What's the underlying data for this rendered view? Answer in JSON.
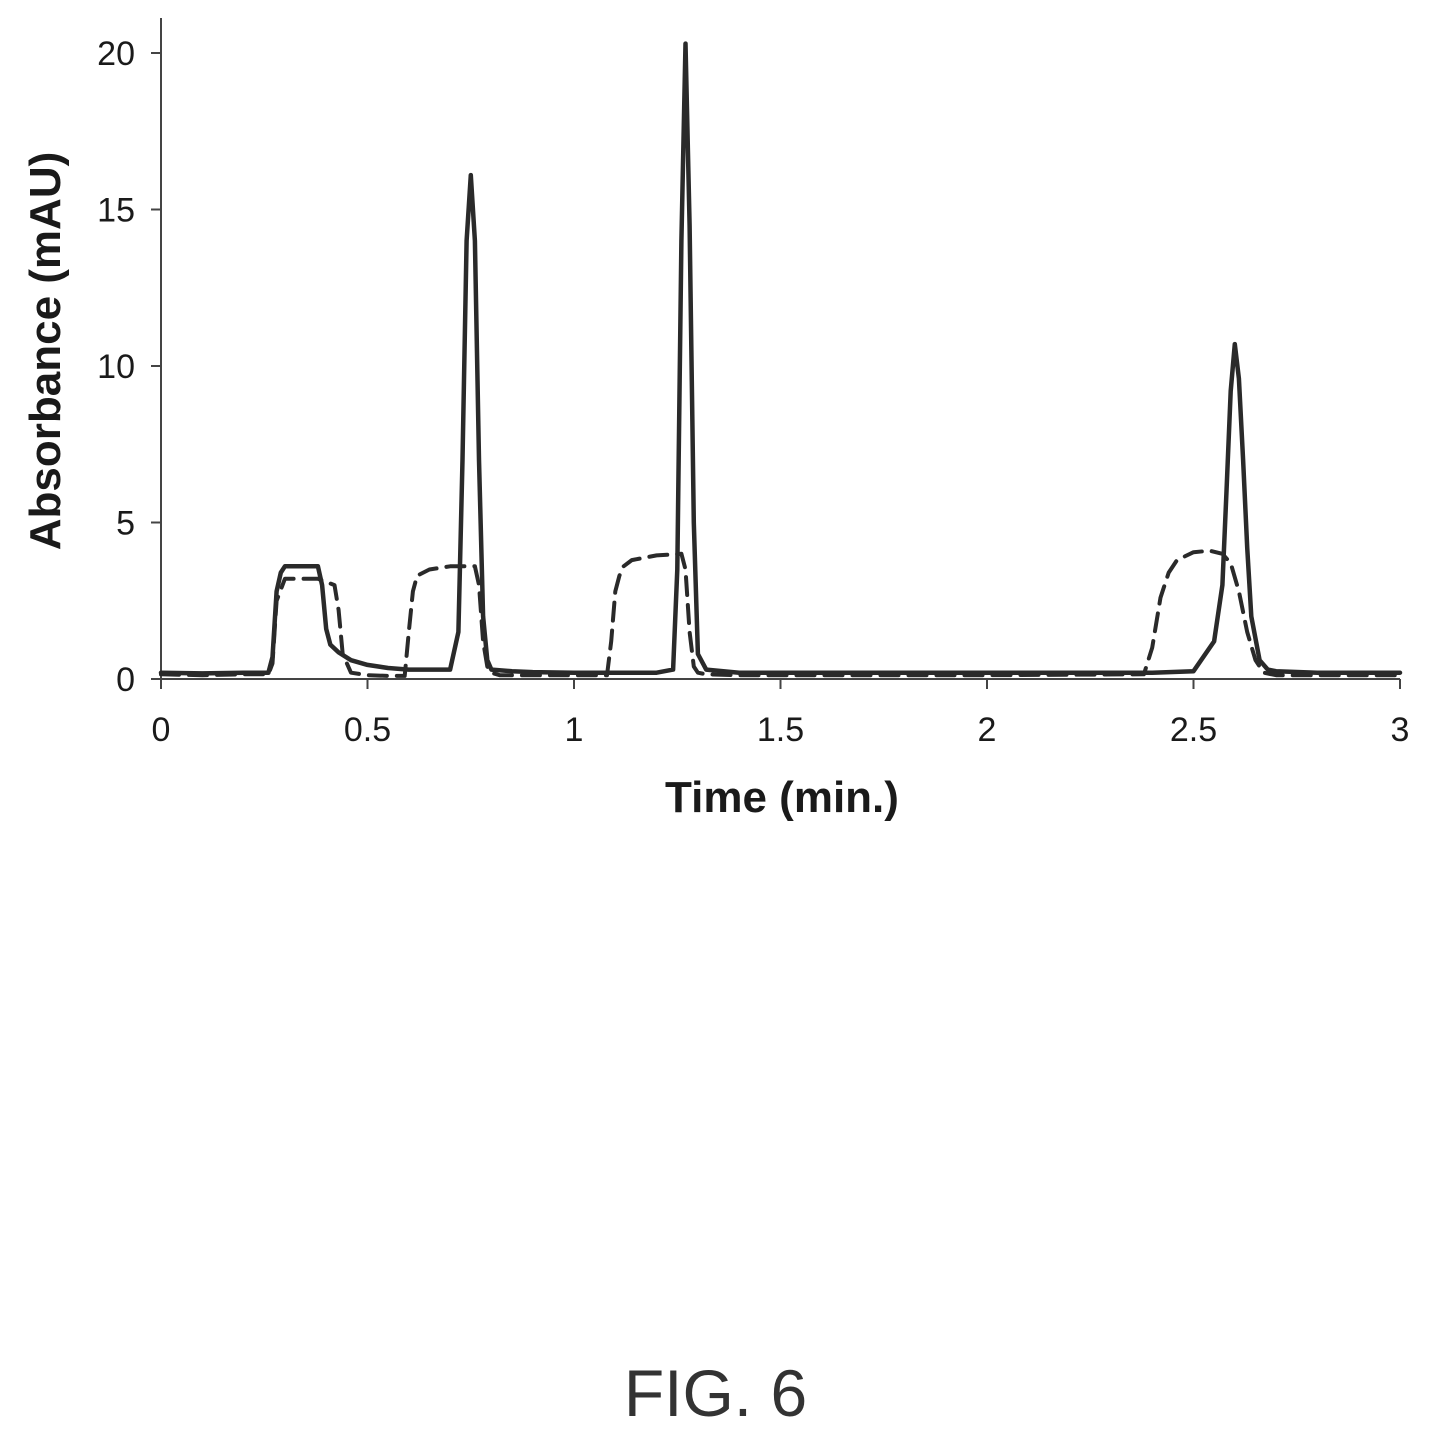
{
  "figure_label": "FIG. 6",
  "colors": {
    "axis": "#444444",
    "solid": "#2a2a2a",
    "dashed": "#2a2a2a",
    "text": "#1a1a1a"
  },
  "chart_data": {
    "type": "line",
    "title": "",
    "xlabel": "Time (min.)",
    "ylabel": "Absorbance (mAU)",
    "xlim": [
      0,
      3
    ],
    "ylim": [
      0,
      20
    ],
    "xticks": [
      0,
      0.5,
      1,
      1.5,
      2,
      2.5,
      3
    ],
    "xtick_labels": [
      "0",
      "0.5",
      "1",
      "1.5",
      "2",
      "2.5",
      "3"
    ],
    "yticks": [
      0,
      5,
      10,
      15,
      20
    ],
    "ytick_labels": [
      "0",
      "5",
      "10",
      "15",
      "20"
    ],
    "grid": false,
    "legend": "none",
    "series": [
      {
        "style": "solid",
        "x": [
          0,
          0.1,
          0.2,
          0.26,
          0.27,
          0.28,
          0.29,
          0.3,
          0.32,
          0.38,
          0.39,
          0.4,
          0.41,
          0.43,
          0.46,
          0.5,
          0.55,
          0.6,
          0.65,
          0.7,
          0.72,
          0.73,
          0.74,
          0.75,
          0.76,
          0.77,
          0.78,
          0.79,
          0.8,
          0.85,
          0.9,
          1.0,
          1.1,
          1.2,
          1.24,
          1.25,
          1.26,
          1.27,
          1.28,
          1.29,
          1.3,
          1.32,
          1.4,
          1.6,
          1.8,
          2.0,
          2.2,
          2.4,
          2.5,
          2.55,
          2.57,
          2.58,
          2.59,
          2.6,
          2.61,
          2.62,
          2.63,
          2.64,
          2.66,
          2.68,
          2.7,
          2.8,
          3.0
        ],
        "y": [
          0.2,
          0.18,
          0.2,
          0.2,
          0.7,
          2.8,
          3.4,
          3.6,
          3.6,
          3.6,
          3.0,
          1.6,
          1.1,
          0.85,
          0.6,
          0.45,
          0.35,
          0.3,
          0.3,
          0.3,
          1.5,
          7.0,
          14.0,
          16.1,
          14.0,
          7.0,
          2.0,
          0.6,
          0.3,
          0.25,
          0.22,
          0.2,
          0.2,
          0.2,
          0.3,
          3.5,
          14.0,
          20.3,
          14.5,
          5.0,
          0.8,
          0.3,
          0.2,
          0.2,
          0.2,
          0.2,
          0.2,
          0.2,
          0.25,
          1.2,
          3.0,
          6.0,
          9.2,
          10.7,
          9.6,
          7.0,
          4.2,
          2.0,
          0.6,
          0.3,
          0.25,
          0.2,
          0.2
        ]
      },
      {
        "style": "dashed",
        "x": [
          0,
          0.1,
          0.2,
          0.26,
          0.27,
          0.28,
          0.3,
          0.32,
          0.36,
          0.38,
          0.4,
          0.42,
          0.43,
          0.44,
          0.46,
          0.5,
          0.55,
          0.59,
          0.6,
          0.61,
          0.62,
          0.65,
          0.7,
          0.76,
          0.77,
          0.78,
          0.79,
          0.8,
          0.82,
          0.9,
          1.0,
          1.08,
          1.09,
          1.1,
          1.11,
          1.12,
          1.14,
          1.2,
          1.26,
          1.27,
          1.28,
          1.29,
          1.3,
          1.32,
          1.4,
          1.6,
          2.0,
          2.38,
          2.4,
          2.42,
          2.44,
          2.46,
          2.5,
          2.54,
          2.57,
          2.59,
          2.61,
          2.63,
          2.65,
          2.67,
          2.7,
          2.8,
          3.0
        ],
        "y": [
          0.15,
          0.12,
          0.15,
          0.15,
          0.5,
          2.5,
          3.2,
          3.2,
          3.2,
          3.2,
          3.1,
          3.0,
          2.2,
          0.8,
          0.2,
          0.12,
          0.1,
          0.1,
          1.5,
          2.8,
          3.3,
          3.5,
          3.6,
          3.6,
          3.0,
          1.2,
          0.4,
          0.2,
          0.12,
          0.12,
          0.12,
          0.12,
          1.2,
          2.8,
          3.3,
          3.6,
          3.8,
          3.95,
          4.0,
          3.5,
          1.5,
          0.4,
          0.2,
          0.15,
          0.12,
          0.12,
          0.12,
          0.15,
          1.0,
          2.6,
          3.4,
          3.8,
          4.05,
          4.1,
          4.0,
          3.7,
          2.8,
          1.5,
          0.6,
          0.2,
          0.12,
          0.12,
          0.12
        ]
      }
    ]
  }
}
